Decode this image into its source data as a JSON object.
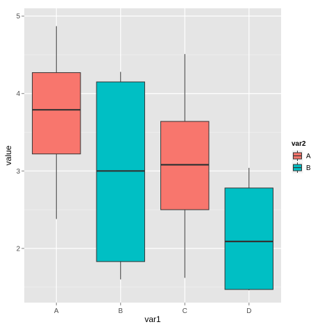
{
  "chart_data": {
    "type": "boxplot",
    "xlabel": "var1",
    "ylabel": "value",
    "categories": [
      "A",
      "B",
      "C",
      "D"
    ],
    "y_ticks": [
      2,
      3,
      4,
      5
    ],
    "ylim": [
      1.3,
      5.1
    ],
    "legend": {
      "title": "var2",
      "position": "right",
      "entries": [
        {
          "name": "A",
          "color": "#F8766D"
        },
        {
          "name": "B",
          "color": "#00BFC4"
        }
      ]
    },
    "boxes": [
      {
        "category": "A",
        "group": "A",
        "min": 2.38,
        "q1": 3.22,
        "median": 3.79,
        "q3": 4.27,
        "max": 4.87
      },
      {
        "category": "B",
        "group": "B",
        "min": 1.6,
        "q1": 1.83,
        "median": 3.0,
        "q3": 4.15,
        "max": 4.28
      },
      {
        "category": "C",
        "group": "A",
        "min": 1.62,
        "q1": 2.5,
        "median": 3.08,
        "q3": 3.64,
        "max": 4.51
      },
      {
        "category": "D",
        "group": "B",
        "min": 1.46,
        "q1": 1.47,
        "median": 2.09,
        "q3": 2.78,
        "max": 3.04
      }
    ],
    "grid": true,
    "panel_background": "#E5E5E5"
  }
}
